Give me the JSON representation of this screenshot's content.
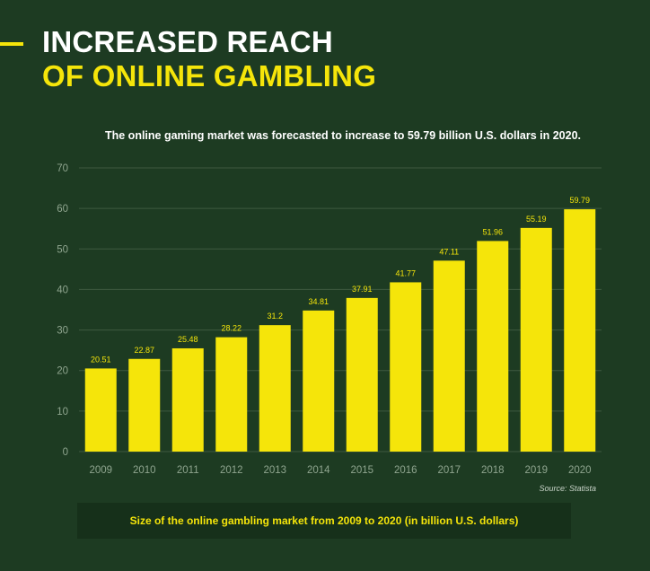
{
  "header": {
    "title_line1": "INCREASED REACH",
    "title_line2": "OF ONLINE GAMBLING",
    "subtitle": "The online gaming market was forecasted to increase to 59.79 billion U.S. dollars in 2020."
  },
  "source": "Source: Statista",
  "caption": "Size of the online gambling market from 2009 to 2020 (in billion U.S. dollars)",
  "colors": {
    "background": "#1d3b22",
    "bar": "#f5e50a",
    "accent": "#f5e50a",
    "gridline": "#3e5a40",
    "tick_text": "#8fa58f"
  },
  "chart_data": {
    "type": "bar",
    "categories": [
      "2009",
      "2010",
      "2011",
      "2012",
      "2013",
      "2014",
      "2015",
      "2016",
      "2017",
      "2018",
      "2019",
      "2020"
    ],
    "values": [
      20.51,
      22.87,
      25.48,
      28.22,
      31.2,
      34.81,
      37.91,
      41.77,
      47.11,
      51.96,
      55.19,
      59.79
    ],
    "value_labels": [
      "20.51",
      "22.87",
      "25.48",
      "28.22",
      "31.2",
      "34.81",
      "37.91",
      "41.77",
      "47.11",
      "51.96",
      "55.19",
      "59.79"
    ],
    "ylim": [
      0,
      70
    ],
    "yticks": [
      0,
      10,
      20,
      30,
      40,
      50,
      60,
      70
    ],
    "grid": true,
    "legend": "none"
  }
}
